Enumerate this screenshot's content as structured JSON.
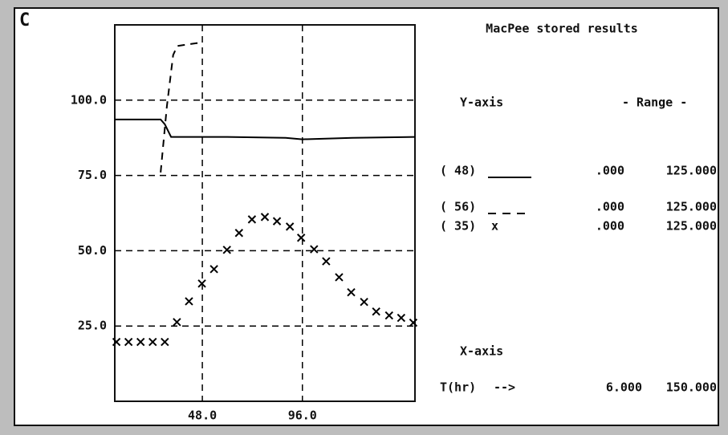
{
  "chart_data": {
    "type": "line",
    "panel_label": "C",
    "title": "MacPee stored results",
    "xlim": [
      6,
      150
    ],
    "ylim": [
      0,
      125
    ],
    "xticks": [
      {
        "value": 48,
        "label": "48.0"
      },
      {
        "value": 96,
        "label": "96.0"
      }
    ],
    "yticks": [
      {
        "value": 25,
        "label": "25.0"
      },
      {
        "value": 50,
        "label": "50.0"
      },
      {
        "value": 75,
        "label": "75.0"
      },
      {
        "value": 100,
        "label": "100.0"
      }
    ],
    "grid": true,
    "color": "#000000",
    "legend_y_header": "Y-axis",
    "legend_range_header": "- Range -",
    "series": [
      {
        "name": "( 48)",
        "style": "solid",
        "range_min": ".000",
        "range_max": "125.000",
        "x": [
          6,
          28,
          30,
          33,
          60,
          88,
          96,
          120,
          150
        ],
        "values": [
          93.6,
          93.6,
          92,
          87.8,
          87.8,
          87.5,
          87,
          87.5,
          87.8
        ]
      },
      {
        "name": "( 56)",
        "style": "dashed",
        "range_min": ".000",
        "range_max": "125.000",
        "x": [
          28,
          31,
          34,
          36,
          46
        ],
        "values": [
          76,
          98,
          115,
          118,
          119
        ]
      },
      {
        "name": "( 35)",
        "style": "marker",
        "marker_label": "x",
        "range_min": ".000",
        "range_max": "125.000",
        "x": [
          6.8,
          12.6,
          18.4,
          24.2,
          30.0,
          35.8,
          41.6,
          47.8,
          53.6,
          59.8,
          65.6,
          71.8,
          78.0,
          83.8,
          90.0,
          95.4,
          101.6,
          107.4,
          113.6,
          119.4,
          125.6,
          131.4,
          137.6,
          143.4,
          149.2
        ],
        "values": [
          19.7,
          19.7,
          19.7,
          19.7,
          19.7,
          26.3,
          33.2,
          39.1,
          43.9,
          50.3,
          55.9,
          60.4,
          61.2,
          59.8,
          58.0,
          54.3,
          50.5,
          46.5,
          41.2,
          36.2,
          33.0,
          29.8,
          28.5,
          27.7,
          26.1
        ]
      }
    ],
    "x_axis_header": "X-axis",
    "x_unit": "T(hr)",
    "x_arrow": "-->",
    "x_range_min": "6.000",
    "x_range_max": "150.000"
  }
}
